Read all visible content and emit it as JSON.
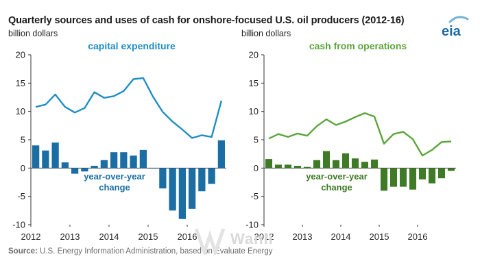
{
  "title": "Quarterly sources  and uses of cash for onshore-focused  U.S. oil producers (2012-16)",
  "logo_text": "eia",
  "watermark_text": "Wanli",
  "source": {
    "label": "Source:",
    "text": " U.S. Energy Information Administration, based on Evaluate Energy"
  },
  "colors": {
    "capex": "#1f8dc6",
    "capex_bar": "#1b6ea3",
    "cfo": "#5aa43a",
    "cfo_bar": "#3f7a26",
    "axis": "#333333",
    "grid": "#bfbfbf",
    "logo": "#1a6aa5",
    "logo_arc": "#7ab2d8"
  },
  "chart_data": [
    {
      "type": "line+bar",
      "title": "capital expenditure",
      "ylabel": "billion dollars",
      "ylim": [
        -10,
        20
      ],
      "yticks": [
        -10,
        -5,
        0,
        5,
        10,
        15,
        20
      ],
      "xlim": [
        2012,
        2017
      ],
      "xticks": [
        2012,
        2013,
        2014,
        2015,
        2016
      ],
      "grid": false,
      "annotation": [
        "year-over-year",
        "change"
      ],
      "series": [
        {
          "name": "capital expenditure",
          "type": "line",
          "x": [
            2012.125,
            2012.375,
            2012.625,
            2012.875,
            2013.125,
            2013.375,
            2013.625,
            2013.875,
            2014.125,
            2014.375,
            2014.625,
            2014.875,
            2015.125,
            2015.375,
            2015.625,
            2015.875,
            2016.125,
            2016.375,
            2016.625,
            2016.875
          ],
          "values": [
            10.8,
            11.2,
            13.0,
            10.8,
            9.8,
            10.6,
            13.4,
            12.4,
            12.7,
            13.6,
            15.7,
            15.9,
            12.6,
            9.9,
            8.2,
            6.8,
            5.3,
            5.8,
            5.5,
            11.9
          ]
        },
        {
          "name": "year-over-year change",
          "type": "bar",
          "x": [
            2012.125,
            2012.375,
            2012.625,
            2012.875,
            2013.125,
            2013.375,
            2013.625,
            2013.875,
            2014.125,
            2014.375,
            2014.625,
            2014.875,
            2015.125,
            2015.375,
            2015.625,
            2015.875,
            2016.125,
            2016.375,
            2016.625,
            2016.875
          ],
          "values": [
            4.0,
            3.1,
            4.5,
            1.0,
            -1.0,
            -0.6,
            0.4,
            1.4,
            2.8,
            2.8,
            2.2,
            3.2,
            -0.1,
            -3.6,
            -7.5,
            -9.0,
            -7.2,
            -4.1,
            -2.8,
            4.9
          ]
        }
      ]
    },
    {
      "type": "line+bar",
      "title": "cash from operations",
      "ylabel": "billion dollars",
      "ylim": [
        -10,
        20
      ],
      "yticks": [
        -10,
        -5,
        0,
        5,
        10,
        15,
        20
      ],
      "xlim": [
        2012,
        2017
      ],
      "xticks": [
        2012,
        2013,
        2014,
        2015,
        2016
      ],
      "grid": false,
      "annotation": [
        "year-over-year",
        "change"
      ],
      "series": [
        {
          "name": "cash from operations",
          "type": "line",
          "x": [
            2012.125,
            2012.375,
            2012.625,
            2012.875,
            2013.125,
            2013.375,
            2013.625,
            2013.875,
            2014.125,
            2014.375,
            2014.625,
            2014.875,
            2015.125,
            2015.375,
            2015.625,
            2015.875,
            2016.125,
            2016.375,
            2016.625,
            2016.875
          ],
          "values": [
            5.2,
            6.0,
            5.5,
            6.1,
            5.7,
            7.4,
            8.6,
            7.6,
            8.2,
            9.0,
            9.7,
            9.1,
            4.3,
            6.0,
            6.4,
            5.1,
            2.2,
            3.2,
            4.6,
            4.7
          ]
        },
        {
          "name": "year-over-year change",
          "type": "bar",
          "x": [
            2012.125,
            2012.375,
            2012.625,
            2012.875,
            2013.125,
            2013.375,
            2013.625,
            2013.875,
            2014.125,
            2014.375,
            2014.625,
            2014.875,
            2015.125,
            2015.375,
            2015.625,
            2015.875,
            2016.125,
            2016.375,
            2016.625,
            2016.875
          ],
          "values": [
            1.6,
            0.6,
            0.6,
            0.4,
            0.2,
            1.4,
            3.0,
            1.4,
            2.6,
            1.7,
            1.1,
            1.5,
            -4.0,
            -3.3,
            -3.3,
            -3.8,
            -2.0,
            -2.7,
            -1.8,
            -0.5
          ]
        }
      ]
    }
  ]
}
